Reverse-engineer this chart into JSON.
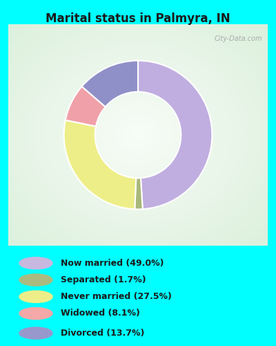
{
  "title": "Marital status in Palmyra, IN",
  "title_color": "#1a1a1a",
  "background_color": "#00FFFF",
  "chart_bg_color": "#d8edd8",
  "slices": [
    {
      "label": "Now married (49.0%)",
      "value": 49.0,
      "color": "#c0aee0"
    },
    {
      "label": "Separated (1.7%)",
      "value": 1.7,
      "color": "#a8b87a"
    },
    {
      "label": "Never married (27.5%)",
      "value": 27.5,
      "color": "#eeee88"
    },
    {
      "label": "Widowed (8.1%)",
      "value": 8.1,
      "color": "#f0a0a8"
    },
    {
      "label": "Divorced (13.7%)",
      "value": 13.7,
      "color": "#9090c8"
    }
  ],
  "legend_colors": [
    "#c8b8e0",
    "#aaba80",
    "#eeee88",
    "#f4a8a8",
    "#9898cc"
  ],
  "watermark": "City-Data.com",
  "figsize": [
    4.0,
    5.0
  ],
  "dpi": 100
}
